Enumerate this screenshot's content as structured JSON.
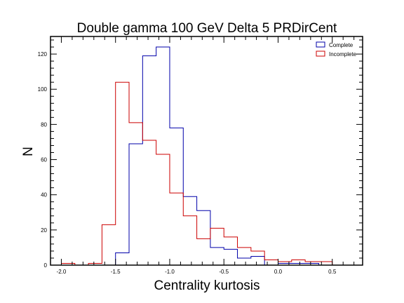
{
  "chart_data": {
    "type": "histogram-step",
    "title": "Double gamma 100 GeV Delta 5 PRDirCent",
    "xlabel": "Centrality kurtosis",
    "ylabel": "N",
    "xlim": [
      -2.1,
      0.78
    ],
    "ylim": [
      0,
      130
    ],
    "x_ticks": [
      -2.0,
      -1.5,
      -1.0,
      -0.5,
      0.0,
      0.5
    ],
    "x_tick_labels": [
      "-2.0",
      "-1.5",
      "-1.0",
      "-0.5",
      "0.0",
      "0.5"
    ],
    "y_ticks": [
      0,
      20,
      40,
      60,
      80,
      100,
      120
    ],
    "y_tick_labels": [
      "0",
      "20",
      "40",
      "60",
      "80",
      "100",
      "120"
    ],
    "bin_edges": [
      -2.0,
      -1.875,
      -1.75,
      -1.625,
      -1.5,
      -1.375,
      -1.25,
      -1.125,
      -1.0,
      -0.875,
      -0.75,
      -0.625,
      -0.5,
      -0.375,
      -0.25,
      -0.125,
      0.0,
      0.125,
      0.25,
      0.375,
      0.5,
      0.625
    ],
    "legend_position": "top-right",
    "grid": false,
    "series": [
      {
        "name": "Complete",
        "color": "#0000aa",
        "values": [
          0,
          0,
          0,
          0,
          7,
          69,
          119,
          124,
          78,
          39,
          31,
          10,
          9,
          4,
          5,
          0,
          1,
          1,
          1,
          0,
          0
        ]
      },
      {
        "name": "Incomplete",
        "color": "#cc0000",
        "values": [
          1,
          0,
          1,
          23,
          104,
          81,
          71,
          63,
          41,
          28,
          15,
          21,
          16,
          10,
          8,
          3,
          2,
          3,
          2,
          2,
          0
        ]
      }
    ]
  }
}
